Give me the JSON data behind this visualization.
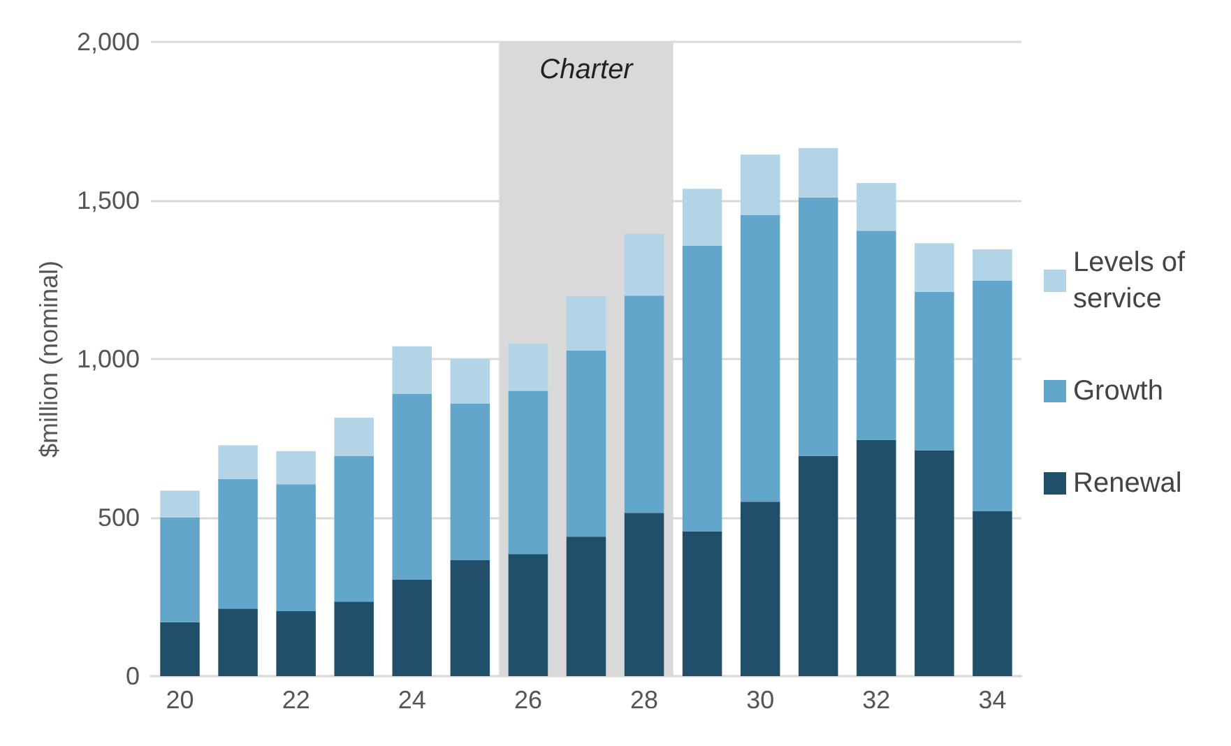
{
  "chart_data": {
    "type": "bar",
    "stacked": true,
    "ylabel": "$million (nominal)",
    "categories": [
      "20",
      null,
      "22",
      null,
      "24",
      null,
      "26",
      null,
      "28",
      null,
      "30",
      null,
      "32",
      null,
      "34"
    ],
    "series": [
      {
        "name": "Renewal",
        "color": "#214e68",
        "values": [
          170,
          213,
          205,
          235,
          305,
          367,
          385,
          440,
          515,
          457,
          550,
          695,
          745,
          712,
          520
        ]
      },
      {
        "name": "Growth",
        "color": "#62a6cc",
        "values": [
          330,
          408,
          400,
          460,
          585,
          493,
          515,
          587,
          685,
          900,
          905,
          815,
          660,
          500,
          728
        ]
      },
      {
        "name": "Levels of service",
        "color": "#b2d4e6",
        "values": [
          85,
          107,
          105,
          120,
          150,
          140,
          148,
          170,
          195,
          180,
          190,
          155,
          150,
          153,
          98
        ]
      }
    ],
    "ylim": [
      0,
      2000
    ],
    "yticks": [
      0,
      500,
      {
        "value": 1000,
        "label": "1,000"
      },
      {
        "value": 1500,
        "label": "1,500"
      },
      {
        "value": 2000,
        "label": "2,000"
      }
    ],
    "grid": "y",
    "legend": "right",
    "bands": [
      {
        "axis": "x",
        "from": "26",
        "to": "28",
        "label": "Charter",
        "color": "#d9d9d9"
      }
    ]
  }
}
